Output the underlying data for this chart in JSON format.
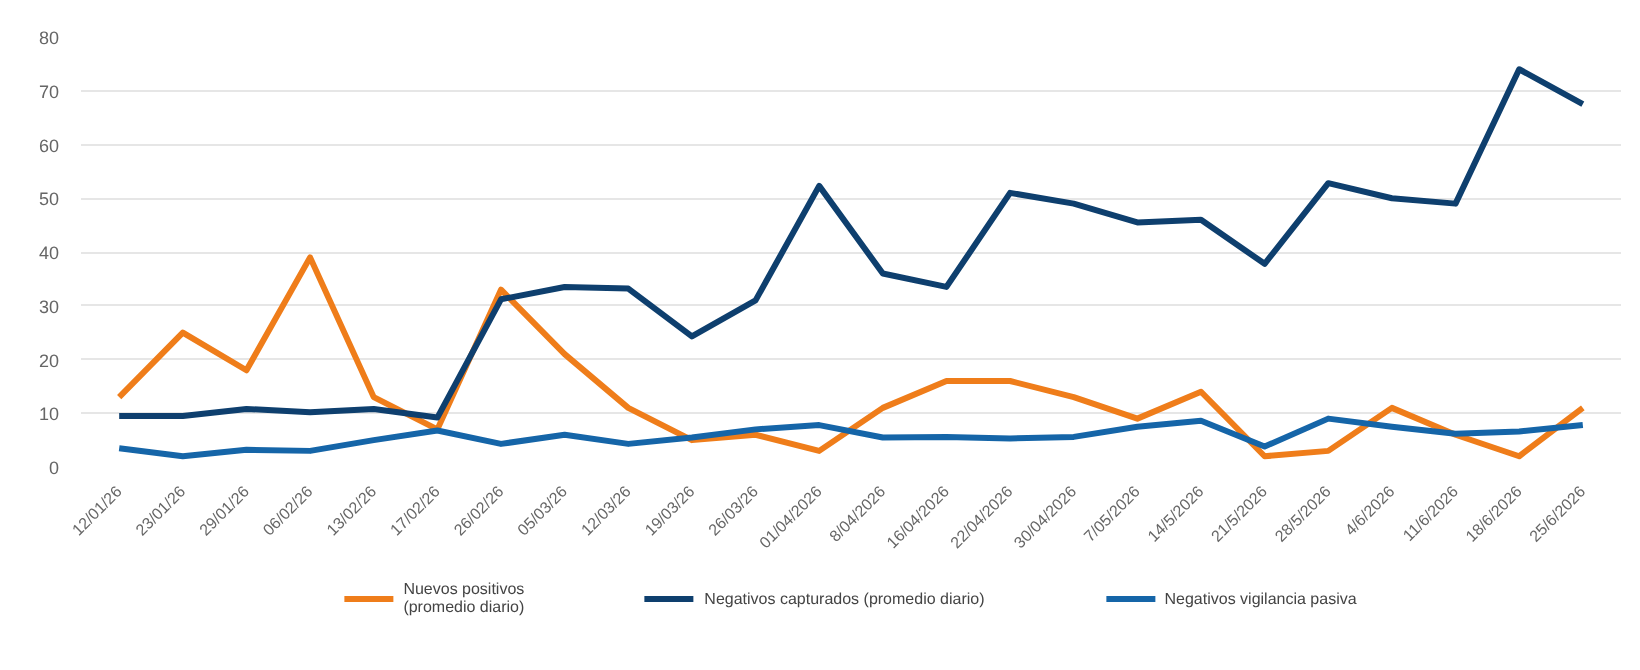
{
  "chart_data": {
    "type": "line",
    "categories": [
      "12/01/26",
      "23/01/26",
      "29/01/26",
      "06/02/26",
      "13/02/26",
      "17/02/26",
      "26/02/26",
      "05/03/26",
      "12/03/26",
      "19/03/26",
      "26/03/26",
      "01/04/2026",
      "8/04/2026",
      "16/04/2026",
      "22/04/2026",
      "30/04/2026",
      "7/05/2026",
      "14/5/2026",
      "21/5/2026",
      "28/5/2026",
      "4/6/2026",
      "11/6/2026",
      "18/6/2026",
      "25/6/2026"
    ],
    "series": [
      {
        "name": "Nuevos positivos\n(promedio diario)",
        "color": "#ef7d1a",
        "values": [
          13,
          25,
          18,
          39,
          13,
          7,
          33,
          21,
          11,
          5,
          6,
          3,
          11,
          16,
          16,
          13,
          9,
          14,
          2,
          3,
          11,
          6,
          2,
          11
        ]
      },
      {
        "name": "Negativos capturados (promedio diario)",
        "color": "#0e3f6e",
        "values": [
          9.5,
          9.5,
          10.8,
          10.2,
          10.8,
          9.2,
          31.2,
          33.5,
          33.2,
          24.3,
          31,
          52.3,
          36,
          33.5,
          51,
          49,
          45.5,
          46,
          37.8,
          52.8,
          50,
          49,
          74,
          67.5
        ]
      },
      {
        "name": "Negativos vigilancia pasiva",
        "color": "#1565a8",
        "values": [
          3.5,
          2,
          3.2,
          3,
          5,
          6.8,
          4.3,
          6,
          4.3,
          5.5,
          7,
          7.8,
          5.5,
          5.6,
          5.3,
          5.6,
          7.5,
          8.6,
          3.8,
          9,
          7.5,
          6.2,
          6.6,
          7.8
        ]
      }
    ],
    "ylim": [
      0,
      80
    ],
    "yticks": [
      0,
      10,
      20,
      30,
      40,
      50,
      60,
      70,
      80
    ],
    "grid": "y",
    "legend": "bottom",
    "marker": "none",
    "line_style": "solid"
  }
}
